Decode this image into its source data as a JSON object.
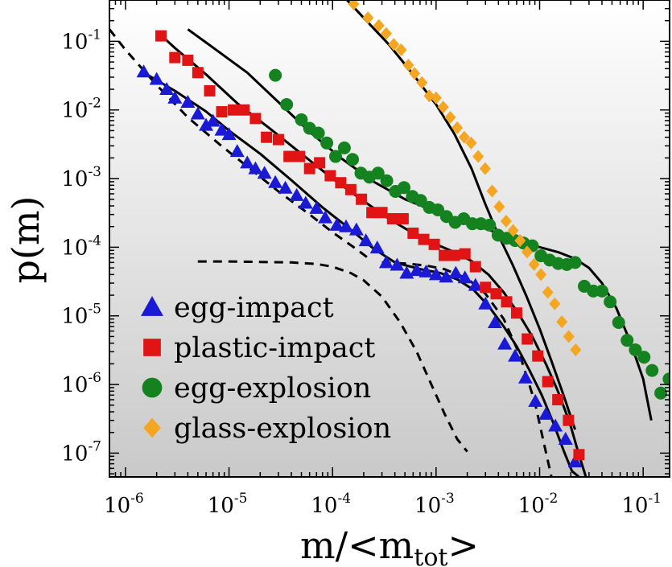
{
  "chart_data": {
    "type": "scatter",
    "title": "",
    "xlabel": {
      "base": "m/<m",
      "sub": "tot",
      "end": ">"
    },
    "ylabel": "p(m)",
    "xscale": "log",
    "yscale": "log",
    "xlim": [
      7e-07,
      0.18
    ],
    "ylim": [
      4.5e-08,
      0.4
    ],
    "x_ticks": [
      {
        "value": 1e-06,
        "base": "10",
        "exp": "-6"
      },
      {
        "value": 1e-05,
        "base": "10",
        "exp": "-5"
      },
      {
        "value": 0.0001,
        "base": "10",
        "exp": "-4"
      },
      {
        "value": 0.001,
        "base": "10",
        "exp": "-3"
      },
      {
        "value": 0.01,
        "base": "10",
        "exp": "-2"
      },
      {
        "value": 0.1,
        "base": "10",
        "exp": "-1"
      }
    ],
    "y_ticks": [
      {
        "value": 1e-07,
        "base": "10",
        "exp": "-7"
      },
      {
        "value": 1e-06,
        "base": "10",
        "exp": "-6"
      },
      {
        "value": 1e-05,
        "base": "10",
        "exp": "-5"
      },
      {
        "value": 0.0001,
        "base": "10",
        "exp": "-4"
      },
      {
        "value": 0.001,
        "base": "10",
        "exp": "-3"
      },
      {
        "value": 0.01,
        "base": "10",
        "exp": "-2"
      },
      {
        "value": 0.1,
        "base": "10",
        "exp": "-1"
      }
    ],
    "background_gradient": [
      "#ffffff",
      "#c9c9c9"
    ],
    "legend": {
      "position": "bottom-left"
    },
    "series": [
      {
        "name": "egg-impact",
        "marker": "triangle",
        "color": "#1a1ad6",
        "x": [
          1.5e-06,
          2e-06,
          2.5e-06,
          3e-06,
          4e-06,
          5e-06,
          6e-06,
          7e-06,
          8.5e-06,
          1e-05,
          1.2e-05,
          1.5e-05,
          1.8e-05,
          2.2e-05,
          2.8e-05,
          3.5e-05,
          4.5e-05,
          5.5e-05,
          7e-05,
          8.5e-05,
          0.00011,
          0.000135,
          0.00017,
          0.00021,
          0.00027,
          0.00033,
          0.00042,
          0.00052,
          0.00065,
          0.0008,
          0.001,
          0.00125,
          0.00155,
          0.0019,
          0.0024,
          0.003,
          0.0037,
          0.0046,
          0.0058,
          0.0073,
          0.0091,
          0.0115,
          0.0142,
          0.0178,
          0.022
        ],
        "y": [
          0.036,
          0.028,
          0.02,
          0.015,
          0.013,
          0.0088,
          0.006,
          0.0069,
          0.0051,
          0.0044,
          0.0025,
          0.0017,
          0.0014,
          0.0012,
          0.00088,
          0.00073,
          0.00057,
          0.00044,
          0.00037,
          0.00027,
          0.00021,
          0.0002,
          0.00018,
          0.000125,
          9.8e-05,
          6e-05,
          5.5e-05,
          4.2e-05,
          4.6e-05,
          4.4e-05,
          4e-05,
          3.7e-05,
          4.2e-05,
          3.6e-05,
          2.8e-05,
          1.5e-05,
          8e-06,
          3.9e-06,
          2.6e-06,
          1.25e-06,
          5.7e-07,
          3.7e-07,
          2.5e-07,
          1.6e-07,
          7.5e-08
        ]
      },
      {
        "name": "plastic-impact",
        "marker": "square",
        "color": "#e01414",
        "x": [
          2.2e-06,
          3e-06,
          4e-06,
          5e-06,
          6.5e-06,
          8.5e-06,
          1.1e-05,
          1.4e-05,
          1.8e-05,
          2.3e-05,
          3e-05,
          3.8e-05,
          4.8e-05,
          6e-05,
          7.5e-05,
          9.5e-05,
          0.00012,
          0.00015,
          0.00019,
          0.00024,
          0.0003,
          0.00038,
          0.00048,
          0.0006,
          0.00076,
          0.00096,
          0.0012,
          0.0015,
          0.0019,
          0.0024,
          0.003,
          0.0038,
          0.0048,
          0.006,
          0.0076,
          0.0096,
          0.012,
          0.015,
          0.019,
          0.024
        ],
        "y": [
          0.12,
          0.058,
          0.053,
          0.035,
          0.019,
          0.0094,
          0.01,
          0.01,
          0.0075,
          0.004,
          0.0037,
          0.0021,
          0.0021,
          0.0014,
          0.0017,
          0.0011,
          0.00087,
          0.00069,
          0.0005,
          0.00032,
          0.00032,
          0.00026,
          0.00026,
          0.00016,
          0.00013,
          0.00011,
          7.6e-05,
          7.6e-05,
          8e-05,
          5.2e-05,
          2.6e-05,
          2.1e-05,
          1.6e-05,
          1.1e-05,
          4.6e-06,
          2.6e-06,
          1.1e-06,
          6e-07,
          3e-07,
          9.5e-08
        ]
      },
      {
        "name": "egg-explosion",
        "marker": "circle",
        "color": "#14821e",
        "x": [
          2.8e-05,
          3.6e-05,
          5e-05,
          6e-05,
          7.3e-05,
          8.8e-05,
          0.000107,
          0.00013,
          0.000156,
          0.000188,
          0.000227,
          0.000275,
          0.000334,
          0.000405,
          0.00049,
          0.00059,
          0.00071,
          0.00086,
          0.00104,
          0.00126,
          0.00153,
          0.00185,
          0.00224,
          0.00271,
          0.00328,
          0.00397,
          0.0048,
          0.0058,
          0.007,
          0.0085,
          0.0103,
          0.0125,
          0.0151,
          0.0183,
          0.022,
          0.027,
          0.033,
          0.04,
          0.048,
          0.058,
          0.07,
          0.084,
          0.102,
          0.122,
          0.148,
          0.178
        ],
        "y": [
          0.032,
          0.012,
          0.0072,
          0.0054,
          0.0046,
          0.0033,
          0.0021,
          0.0028,
          0.0019,
          0.0012,
          0.00105,
          0.0012,
          0.00093,
          0.00065,
          0.00074,
          0.00055,
          0.00048,
          0.00038,
          0.00035,
          0.00028,
          0.00023,
          0.00026,
          0.00022,
          0.00022,
          0.00021,
          0.00015,
          0.000135,
          0.000125,
          0.000115,
          0.000105,
          7.5e-05,
          6.5e-05,
          5.8e-05,
          5.6e-05,
          6e-05,
          2.7e-05,
          2.3e-05,
          2.3e-05,
          1.6e-05,
          8e-06,
          4.4e-06,
          3.2e-06,
          2.5e-06,
          1.6e-06,
          7.5e-07,
          1.2e-06
        ]
      },
      {
        "name": "glass-explosion",
        "marker": "diamond",
        "color": "#f5a620",
        "x": [
          0.00016,
          0.00022,
          0.00028,
          0.00033,
          0.00039,
          0.00046,
          0.00054,
          0.00062,
          0.00073,
          0.00086,
          0.001,
          0.00117,
          0.00137,
          0.0016,
          0.00187,
          0.00218,
          0.00255,
          0.00298,
          0.00348,
          0.00407,
          0.00475,
          0.00555,
          0.00648,
          0.00757,
          0.00884,
          0.0103,
          0.012,
          0.014,
          0.0164,
          0.0191,
          0.0223
        ],
        "y": [
          0.35,
          0.22,
          0.17,
          0.13,
          0.09,
          0.075,
          0.045,
          0.034,
          0.025,
          0.016,
          0.015,
          0.011,
          0.0078,
          0.0055,
          0.004,
          0.0033,
          0.0021,
          0.0014,
          0.00066,
          0.00039,
          0.00024,
          0.000175,
          0.000125,
          8.5e-05,
          5.6e-05,
          4e-05,
          2.2e-05,
          1.5e-05,
          8.2e-06,
          5e-06,
          3.2e-06
        ]
      }
    ],
    "fit_lines": [
      {
        "name": "fit-egg-impact",
        "style": "solid",
        "x": [
          1.5e-06,
          3e-06,
          6e-06,
          1e-05,
          2e-05,
          4e-05,
          8e-05,
          0.00015,
          0.00025,
          0.0004,
          0.0007,
          0.0011,
          0.0016,
          0.0023,
          0.0032,
          0.0045,
          0.006,
          0.008,
          0.0105,
          0.0135,
          0.017,
          0.0205,
          0.024
        ],
        "y": [
          0.035,
          0.019,
          0.0095,
          0.005,
          0.0023,
          0.00095,
          0.00038,
          0.00018,
          9.5e-05,
          6e-05,
          4.8e-05,
          4.2e-05,
          3.4e-05,
          2.4e-05,
          1.4e-05,
          7e-06,
          3.6e-06,
          1.6e-06,
          7e-07,
          2.8e-07,
          1.1e-07,
          5.5e-08,
          4.5e-08
        ]
      },
      {
        "name": "fit-plastic-impact",
        "style": "solid",
        "x": [
          2e-06,
          3e-06,
          6e-06,
          1.2e-05,
          2.5e-05,
          5e-05,
          0.0001,
          0.0002,
          0.00035,
          0.0006,
          0.001,
          0.0015,
          0.0022,
          0.0032,
          0.0045,
          0.0062,
          0.0085,
          0.0115,
          0.015,
          0.0195,
          0.024,
          0.028
        ],
        "y": [
          0.14,
          0.08,
          0.033,
          0.0125,
          0.0053,
          0.0023,
          0.001,
          0.00047,
          0.00026,
          0.00016,
          0.00011,
          8.5e-05,
          6.3e-05,
          4e-05,
          2.2e-05,
          1.1e-05,
          5e-06,
          2e-06,
          8e-07,
          2.8e-07,
          9.5e-08,
          4.5e-08
        ]
      },
      {
        "name": "fit-egg-explosion",
        "style": "solid",
        "x": [
          4e-06,
          8e-06,
          1.5e-05,
          3e-05,
          6e-05,
          0.00012,
          0.00025,
          0.0005,
          0.001,
          0.002,
          0.004,
          0.008,
          0.015,
          0.022,
          0.03,
          0.04,
          0.055,
          0.075,
          0.1,
          0.12
        ],
        "y": [
          0.15,
          0.07,
          0.035,
          0.013,
          0.0048,
          0.002,
          0.0009,
          0.0005,
          0.00033,
          0.00023,
          0.00016,
          0.00011,
          8.5e-05,
          6.8e-05,
          5e-05,
          3e-05,
          1.3e-05,
          4.2e-06,
          1.2e-06,
          3e-07
        ]
      },
      {
        "name": "fit-glass-explosion",
        "style": "solid",
        "x": [
          0.00012,
          0.0002,
          0.00035,
          0.0006,
          0.001,
          0.0015,
          0.0022,
          0.003,
          0.004,
          0.0055,
          0.0075,
          0.01,
          0.013,
          0.017,
          0.022
        ],
        "y": [
          0.5,
          0.22,
          0.09,
          0.033,
          0.012,
          0.0045,
          0.0014,
          0.00042,
          0.00015,
          5.5e-05,
          1.9e-05,
          6.5e-06,
          2.2e-06,
          7e-07,
          2.2e-07
        ]
      },
      {
        "name": "dashed-power-law",
        "style": "dashed",
        "x": [
          7e-07,
          1e-06,
          2e-06,
          4e-06,
          8e-06,
          1.5e-05,
          3e-05,
          6e-05,
          0.0001,
          0.00016,
          0.00022
        ],
        "y": [
          0.15,
          0.075,
          0.023,
          0.0078,
          0.0032,
          0.0015,
          0.00065,
          0.0003,
          0.000165,
          0.0001,
          7e-05
        ]
      },
      {
        "name": "dashed-cutoff-left",
        "style": "dashed",
        "x": [
          5e-06,
          1e-05,
          2e-05,
          4e-05,
          7e-05,
          0.0001,
          0.00015,
          0.0002,
          0.0003,
          0.00045,
          0.00065,
          0.0009,
          0.0012,
          0.0016,
          0.002
        ],
        "y": [
          6.2e-05,
          6.2e-05,
          6.1e-05,
          6e-05,
          5.7e-05,
          5.2e-05,
          4.2e-05,
          3.3e-05,
          1.9e-05,
          8e-06,
          3e-06,
          1e-06,
          3.8e-07,
          1.6e-07,
          1.05e-07
        ]
      },
      {
        "name": "dashed-cutoff-right",
        "style": "dashed",
        "x": [
          0.0003,
          0.0005,
          0.0008,
          0.0012,
          0.002,
          0.003,
          0.0045,
          0.0065,
          0.009,
          0.011,
          0.013
        ],
        "y": [
          6e-05,
          5.8e-05,
          5.4e-05,
          4.8e-05,
          3.5e-05,
          2.1e-05,
          9e-06,
          2.6e-06,
          5.5e-07,
          1.4e-07,
          4.5e-08
        ]
      }
    ]
  }
}
